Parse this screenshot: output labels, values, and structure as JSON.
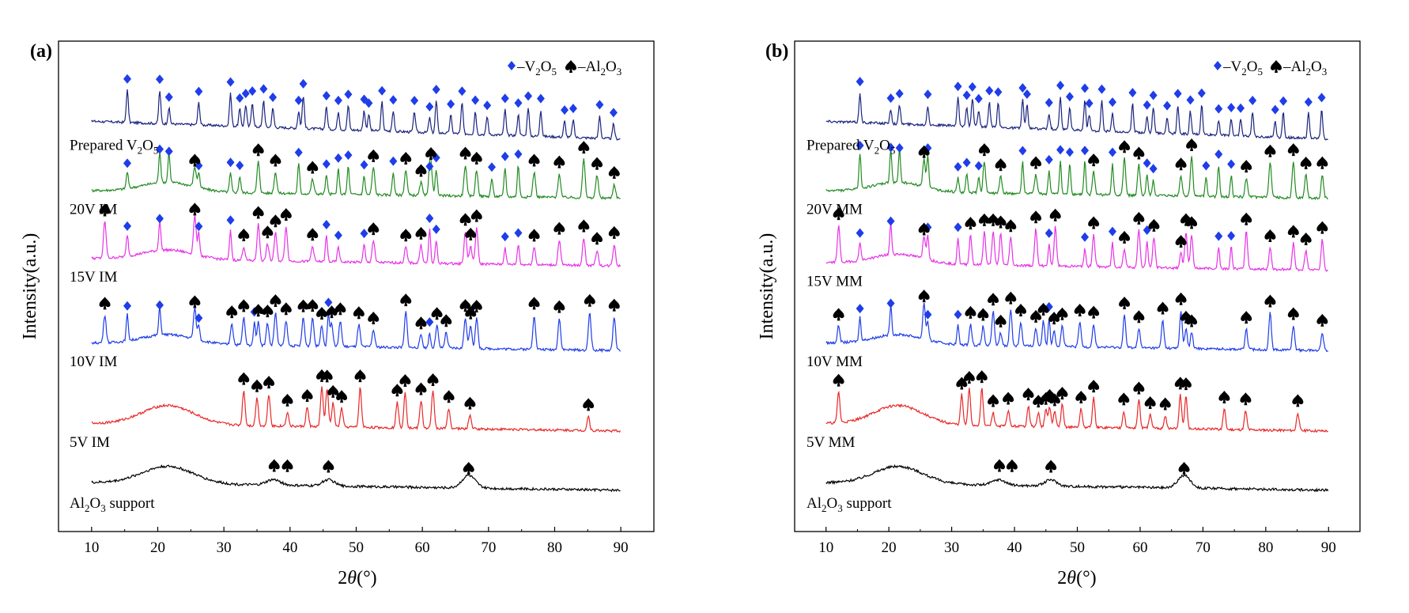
{
  "chart_data": [
    {
      "type": "line",
      "panel_label": "(a)",
      "xlabel_prefix": "2",
      "xlabel_symbol": "θ",
      "xlabel_suffix": "(°)",
      "ylabel": "Intensity(a.u.)",
      "xlim": [
        5,
        95
      ],
      "xticks": [
        10,
        20,
        30,
        40,
        50,
        60,
        70,
        80,
        90
      ],
      "legend": {
        "position": "top-right",
        "v2o5": {
          "prefix": "–V",
          "sub1": "2",
          "mid": "O",
          "sub2": "5"
        },
        "al2o3": {
          "prefix": "–Al",
          "sub1": "2",
          "mid": "O",
          "sub2": "3"
        }
      },
      "series": [
        {
          "name": "Prepared V2O5",
          "label": {
            "pre": "Prepared V",
            "sub1": "2",
            "mid": "O",
            "sub2": "5",
            "post": ""
          },
          "color": "#1a237e",
          "baseline": 0.02,
          "v2o5_peaks": [
            15.4,
            20.3,
            21.7,
            26.2,
            31.0,
            32.4,
            33.3,
            34.3,
            36.0,
            37.4,
            41.3,
            42.0,
            45.5,
            47.3,
            48.8,
            51.2,
            51.9,
            53.9,
            55.6,
            58.8,
            61.1,
            62.1,
            64.3,
            66.0,
            68.0,
            69.8,
            72.5,
            74.5,
            76.0,
            77.9,
            81.5,
            82.8,
            86.8,
            88.9
          ],
          "al2o3_peaks": []
        },
        {
          "name": "20V IM",
          "label": {
            "pre": "20V IM",
            "sub1": "",
            "mid": "",
            "sub2": "",
            "post": ""
          },
          "color": "#228b22",
          "baseline": 0.16,
          "v2o5_peaks": [
            15.4,
            20.3,
            21.7,
            26.2,
            31.0,
            32.4,
            41.3,
            45.5,
            47.3,
            48.8,
            51.2,
            55.6,
            61.1,
            62.1,
            70.5,
            72.5,
            74.5
          ],
          "al2o3_peaks": [
            25.6,
            35.2,
            37.8,
            43.4,
            52.6,
            57.5,
            59.8,
            61.3,
            66.5,
            68.2,
            76.9,
            80.7,
            84.4,
            86.4,
            89.0
          ]
        },
        {
          "name": "15V IM",
          "label": {
            "pre": "15V IM",
            "sub1": "",
            "mid": "",
            "sub2": "",
            "post": ""
          },
          "color": "#e633e6",
          "baseline": 0.32,
          "v2o5_peaks": [
            15.4,
            20.3,
            26.2,
            31.0,
            45.5,
            47.3,
            51.2,
            61.1,
            62.1,
            72.5,
            74.5
          ],
          "al2o3_peaks": [
            12.0,
            25.6,
            33.0,
            35.2,
            36.6,
            37.8,
            39.4,
            43.4,
            52.6,
            57.5,
            59.8,
            66.5,
            67.3,
            68.2,
            76.9,
            80.7,
            84.4,
            86.4,
            89.0
          ]
        },
        {
          "name": "10V IM",
          "label": {
            "pre": "10V IM",
            "sub1": "",
            "mid": "",
            "sub2": "",
            "post": ""
          },
          "color": "#1f3de8",
          "baseline": 0.52,
          "v2o5_peaks": [
            15.4,
            20.3,
            26.2,
            34.6,
            45.8,
            61.1
          ],
          "al2o3_peaks": [
            12.0,
            25.6,
            31.2,
            33.0,
            35.2,
            36.6,
            37.8,
            39.4,
            42.0,
            43.4,
            44.8,
            46.3,
            47.6,
            50.4,
            52.6,
            57.5,
            59.8,
            62.2,
            63.6,
            66.5,
            67.3,
            68.2,
            76.9,
            80.7,
            85.3,
            89.0
          ]
        },
        {
          "name": "5V IM",
          "label": {
            "pre": "5V IM",
            "sub1": "",
            "mid": "",
            "sub2": "",
            "post": ""
          },
          "color": "#e82828",
          "baseline": 0.71,
          "v2o5_peaks": [],
          "al2o3_peaks": [
            33.0,
            35.0,
            36.8,
            39.6,
            42.6,
            44.8,
            45.6,
            46.5,
            47.8,
            50.6,
            56.2,
            57.4,
            59.8,
            61.6,
            64.0,
            67.2,
            85.1
          ]
        },
        {
          "name": "Al2O3 support",
          "label": {
            "pre": "Al",
            "sub1": "2",
            "mid": "O",
            "sub2": "3",
            "post": " support"
          },
          "color": "#000000",
          "baseline": 0.85,
          "v2o5_peaks": [],
          "al2o3_peaks": [
            37.6,
            39.6,
            45.8,
            67.0
          ]
        }
      ]
    },
    {
      "type": "line",
      "panel_label": "(b)",
      "xlabel_prefix": "2",
      "xlabel_symbol": "θ",
      "xlabel_suffix": "(°)",
      "ylabel": "Intensity(a.u.)",
      "xlim": [
        5,
        95
      ],
      "xticks": [
        10,
        20,
        30,
        40,
        50,
        60,
        70,
        80,
        90
      ],
      "legend": {
        "position": "top-right",
        "v2o5": {
          "prefix": "–V",
          "sub1": "2",
          "mid": "O",
          "sub2": "5"
        },
        "al2o3": {
          "prefix": "–Al",
          "sub1": "2",
          "mid": "O",
          "sub2": "3"
        }
      },
      "series": [
        {
          "name": "Prepared V2O5",
          "label": {
            "pre": "Prepared V",
            "sub1": "2",
            "mid": "O",
            "sub2": "5",
            "post": ""
          },
          "color": "#1a237e",
          "baseline": 0.02,
          "v2o5_peaks": [
            15.4,
            20.3,
            21.7,
            26.2,
            31.0,
            32.4,
            33.3,
            34.3,
            36.0,
            37.4,
            41.3,
            42.0,
            45.5,
            47.3,
            48.8,
            51.2,
            51.9,
            53.9,
            55.6,
            58.8,
            61.1,
            62.1,
            64.3,
            66.0,
            68.0,
            69.8,
            72.5,
            74.5,
            76.0,
            77.9,
            81.5,
            82.8,
            86.8,
            88.9
          ],
          "al2o3_peaks": []
        },
        {
          "name": "20V MM",
          "label": {
            "pre": "20V MM",
            "sub1": "",
            "mid": "",
            "sub2": "",
            "post": ""
          },
          "color": "#228b22",
          "baseline": 0.16,
          "v2o5_peaks": [
            15.4,
            20.3,
            21.7,
            26.2,
            31.0,
            32.4,
            34.3,
            41.3,
            45.5,
            47.3,
            48.8,
            51.2,
            55.6,
            61.1,
            62.1,
            70.5,
            72.5,
            74.5
          ],
          "al2o3_peaks": [
            25.6,
            35.2,
            37.8,
            43.4,
            52.6,
            57.5,
            59.8,
            66.5,
            68.2,
            76.9,
            80.7,
            84.4,
            86.4,
            89.0
          ]
        },
        {
          "name": "15V MM",
          "label": {
            "pre": "15V MM",
            "sub1": "",
            "mid": "",
            "sub2": "",
            "post": ""
          },
          "color": "#e633e6",
          "baseline": 0.33,
          "v2o5_peaks": [
            15.4,
            20.3,
            26.2,
            31.0,
            45.5,
            51.2,
            55.6,
            61.1,
            72.5,
            74.5
          ],
          "al2o3_peaks": [
            12.0,
            25.6,
            33.0,
            35.2,
            36.6,
            37.8,
            39.4,
            43.4,
            46.5,
            52.6,
            57.5,
            59.8,
            62.2,
            66.5,
            67.3,
            68.2,
            76.9,
            80.7,
            84.4,
            86.4,
            89.0
          ]
        },
        {
          "name": "10V MM",
          "label": {
            "pre": "10V MM",
            "sub1": "",
            "mid": "",
            "sub2": "",
            "post": ""
          },
          "color": "#1f3de8",
          "baseline": 0.52,
          "v2o5_peaks": [
            15.4,
            20.3,
            26.2,
            31.0,
            45.5
          ],
          "al2o3_peaks": [
            12.0,
            25.6,
            33.0,
            35.0,
            36.6,
            37.8,
            39.4,
            41.0,
            43.4,
            44.6,
            46.3,
            47.6,
            50.4,
            52.6,
            57.5,
            59.8,
            63.6,
            66.5,
            67.3,
            68.2,
            76.9,
            80.7,
            84.4,
            89.0
          ]
        },
        {
          "name": "5V MM",
          "label": {
            "pre": "5V MM",
            "sub1": "",
            "mid": "",
            "sub2": "",
            "post": ""
          },
          "color": "#e82828",
          "baseline": 0.71,
          "v2o5_peaks": [],
          "al2o3_peaks": [
            12.0,
            31.6,
            32.8,
            34.8,
            36.6,
            39.0,
            42.2,
            43.8,
            45.0,
            45.6,
            46.4,
            47.6,
            50.6,
            52.6,
            57.4,
            59.8,
            61.6,
            64.0,
            66.4,
            67.3,
            73.4,
            76.8,
            85.1
          ]
        },
        {
          "name": "Al2O3 support",
          "label": {
            "pre": "Al",
            "sub1": "2",
            "mid": "O",
            "sub2": "3",
            "post": " support"
          },
          "color": "#000000",
          "baseline": 0.85,
          "v2o5_peaks": [],
          "al2o3_peaks": [
            37.6,
            39.6,
            45.8,
            67.0
          ]
        }
      ]
    }
  ]
}
